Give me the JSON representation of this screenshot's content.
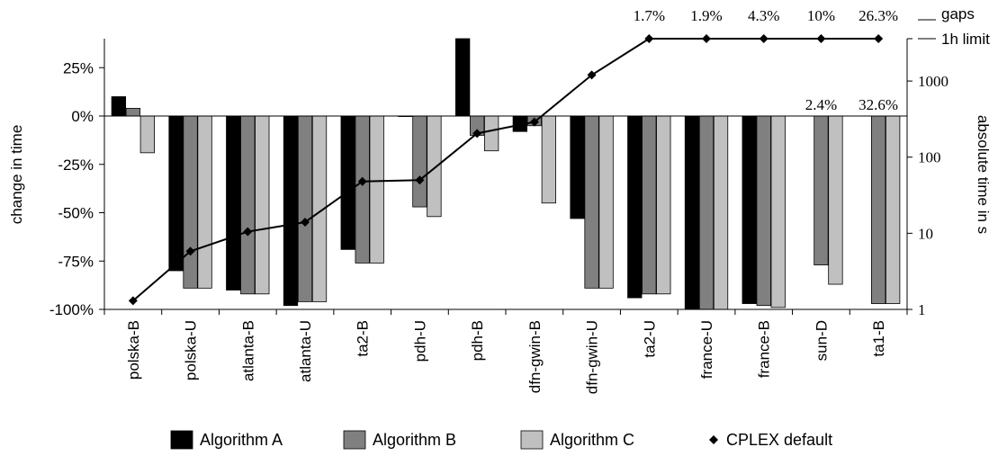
{
  "chart_data": {
    "type": "bar",
    "categories": [
      "polska-B",
      "polska-U",
      "atlanta-B",
      "atlanta-U",
      "ta2-B",
      "pdh-U",
      "pdh-B",
      "dfn-gwin-B",
      "dfn-gwin-U",
      "ta2-U",
      "france-U",
      "france-B",
      "sun-D",
      "ta1-B"
    ],
    "series": [
      {
        "name": "Algorithm A",
        "color": "#000000",
        "values": [
          10,
          -80,
          -90,
          -98,
          -69,
          0,
          40,
          -8,
          -53,
          -94,
          -100,
          -97,
          null,
          null
        ]
      },
      {
        "name": "Algorithm B",
        "color": "#808080",
        "values": [
          4,
          -89,
          -92,
          -96,
          -76,
          -47,
          -10,
          -5,
          -89,
          -92,
          -100,
          -98,
          -77,
          -97
        ]
      },
      {
        "name": "Algorithm C",
        "color": "#c0c0c0",
        "values": [
          -19,
          -89,
          -92,
          -96,
          -76,
          -52,
          -18,
          -45,
          -89,
          -92,
          -100,
          -99,
          -87,
          -97
        ]
      }
    ],
    "line_series": {
      "name": "CPLEX default",
      "marker": "diamond",
      "color": "#000000",
      "axis": "right",
      "values": [
        1.3,
        5.8,
        10.5,
        14,
        48,
        50,
        205,
        290,
        1200,
        3600,
        3600,
        3600,
        3600,
        3600
      ]
    },
    "ylabel": "change in time",
    "ylabel_right": "absolute time in s",
    "ylim": [
      -100,
      40
    ],
    "yticks": [
      {
        "value": 25,
        "label": "25%"
      },
      {
        "value": 0,
        "label": "0%"
      },
      {
        "value": -25,
        "label": "-25%"
      },
      {
        "value": -50,
        "label": "-50%"
      },
      {
        "value": -75,
        "label": "-75%"
      },
      {
        "value": -100,
        "label": "-100%"
      }
    ],
    "y2_scale": "log",
    "y2lim": [
      1,
      3600
    ],
    "y2ticks": [
      {
        "value": 1,
        "label": "1"
      },
      {
        "value": 10,
        "label": "10"
      },
      {
        "value": 100,
        "label": "100"
      },
      {
        "value": 1000,
        "label": "1000"
      },
      {
        "value": 3600,
        "label": "1h limit"
      }
    ],
    "gaps_label": "gaps",
    "gap_labels_top": [
      {
        "category": "ta2-U",
        "label": "1.7%"
      },
      {
        "category": "france-U",
        "label": "1.9%"
      },
      {
        "category": "france-B",
        "label": "4.3%"
      },
      {
        "category": "sun-D",
        "label": "10%"
      },
      {
        "category": "ta1-B",
        "label": "26.3%"
      }
    ],
    "gap_labels_zero": [
      {
        "category": "sun-D",
        "label": "2.4%"
      },
      {
        "category": "ta1-B",
        "label": "32.6%"
      }
    ],
    "legend_position": "bottom",
    "grid": false
  }
}
